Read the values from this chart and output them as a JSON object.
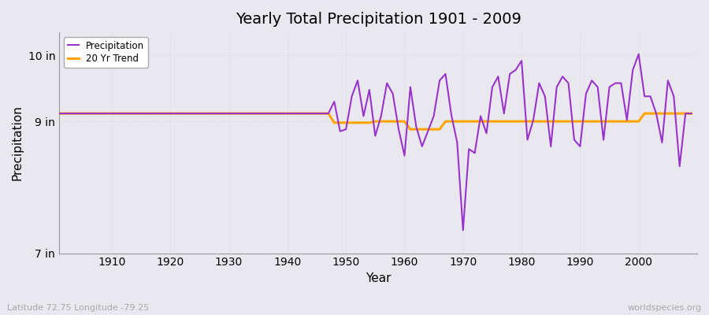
{
  "title": "Yearly Total Precipitation 1901 - 2009",
  "xlabel": "Year",
  "ylabel": "Precipitation",
  "subtitle": "Latitude 72.75 Longitude -79.25",
  "watermark": "worldspecies.org",
  "legend_entries": [
    "Precipitation",
    "20 Yr Trend"
  ],
  "precip_color": "#9933cc",
  "trend_color": "#FFA500",
  "background_color": "#e8e8ee",
  "plot_bg_color": "#e8e8ee",
  "ylim": [
    7.0,
    10.35
  ],
  "yticks": [
    7.0,
    9.0,
    10.0
  ],
  "ytick_labels": [
    "7 in",
    "9 in",
    "10 in"
  ],
  "xlim": [
    1901,
    2010
  ],
  "xticks": [
    1910,
    1920,
    1930,
    1940,
    1950,
    1960,
    1970,
    1980,
    1990,
    2000
  ],
  "years_precip": [
    1901,
    1902,
    1903,
    1904,
    1905,
    1906,
    1907,
    1908,
    1909,
    1910,
    1911,
    1912,
    1913,
    1914,
    1915,
    1916,
    1917,
    1918,
    1919,
    1920,
    1921,
    1922,
    1923,
    1924,
    1925,
    1926,
    1927,
    1928,
    1929,
    1930,
    1931,
    1932,
    1933,
    1934,
    1935,
    1936,
    1937,
    1938,
    1939,
    1940,
    1941,
    1942,
    1943,
    1944,
    1945,
    1946,
    1947,
    1948,
    1949,
    1950,
    1951,
    1952,
    1953,
    1954,
    1955,
    1956,
    1957,
    1958,
    1959,
    1960,
    1961,
    1962,
    1963,
    1964,
    1965,
    1966,
    1967,
    1968,
    1969,
    1970,
    1971,
    1972,
    1973,
    1974,
    1975,
    1976,
    1977,
    1978,
    1979,
    1980,
    1981,
    1982,
    1983,
    1984,
    1985,
    1986,
    1987,
    1988,
    1989,
    1990,
    1991,
    1992,
    1993,
    1994,
    1995,
    1996,
    1997,
    1998,
    1999,
    2000,
    2001,
    2002,
    2003,
    2004,
    2005,
    2006,
    2007,
    2008,
    2009
  ],
  "values_precip": [
    9.12,
    9.12,
    9.12,
    9.12,
    9.12,
    9.12,
    9.12,
    9.12,
    9.12,
    9.12,
    9.12,
    9.12,
    9.12,
    9.12,
    9.12,
    9.12,
    9.12,
    9.12,
    9.12,
    9.12,
    9.12,
    9.12,
    9.12,
    9.12,
    9.12,
    9.12,
    9.12,
    9.12,
    9.12,
    9.12,
    9.12,
    9.12,
    9.12,
    9.12,
    9.12,
    9.12,
    9.12,
    9.12,
    9.12,
    9.12,
    9.12,
    9.12,
    9.12,
    9.12,
    9.12,
    9.12,
    9.12,
    9.3,
    8.85,
    8.88,
    9.38,
    9.62,
    9.08,
    9.48,
    8.78,
    9.08,
    9.58,
    9.42,
    8.88,
    8.48,
    9.52,
    8.92,
    8.62,
    8.85,
    9.08,
    9.62,
    9.72,
    9.1,
    8.68,
    7.35,
    8.58,
    8.52,
    9.08,
    8.82,
    9.52,
    9.68,
    9.12,
    9.72,
    9.78,
    9.92,
    8.72,
    9.02,
    9.58,
    9.38,
    8.62,
    9.52,
    9.68,
    9.58,
    8.72,
    8.62,
    9.42,
    9.62,
    9.52,
    8.72,
    9.52,
    9.58,
    9.58,
    9.02,
    9.78,
    10.02,
    9.38,
    9.38,
    9.12,
    8.68,
    9.62,
    9.38,
    8.32,
    9.12,
    9.12
  ],
  "years_trend": [
    1901,
    1947,
    1948,
    1954,
    1955,
    1960,
    1961,
    1966,
    1967,
    1972,
    1973,
    1980,
    1981,
    1985,
    1986,
    2000,
    2001,
    2009
  ],
  "values_trend": [
    9.12,
    9.12,
    8.98,
    8.98,
    9.0,
    9.0,
    8.88,
    8.88,
    9.0,
    9.0,
    9.0,
    9.0,
    9.0,
    9.0,
    9.0,
    9.0,
    9.12,
    9.12
  ]
}
